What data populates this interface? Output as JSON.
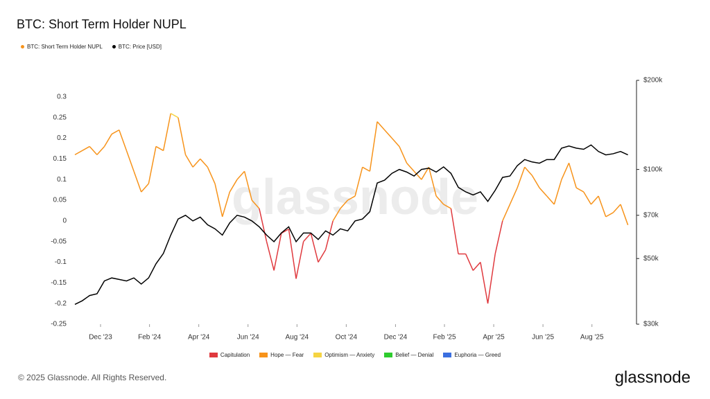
{
  "chart_data": {
    "type": "line",
    "title": "BTC: Short Term Holder NUPL",
    "xlim": [
      2023.83,
      2025.72
    ],
    "xticks": [
      {
        "value": 2023.917,
        "label": "Dec '23"
      },
      {
        "value": 2024.083,
        "label": "Feb '24"
      },
      {
        "value": 2024.25,
        "label": "Apr '24"
      },
      {
        "value": 2024.417,
        "label": "Jun '24"
      },
      {
        "value": 2024.583,
        "label": "Aug '24"
      },
      {
        "value": 2024.75,
        "label": "Oct '24"
      },
      {
        "value": 2024.917,
        "label": "Dec '24"
      },
      {
        "value": 2025.083,
        "label": "Feb '25"
      },
      {
        "value": 2025.25,
        "label": "Apr '25"
      },
      {
        "value": 2025.417,
        "label": "Jun '25"
      },
      {
        "value": 2025.583,
        "label": "Aug '25"
      }
    ],
    "ylim": [
      -0.25,
      0.34
    ],
    "yticks": [
      0.3,
      0.25,
      0.2,
      0.15,
      0.1,
      0.05,
      0,
      -0.05,
      -0.1,
      -0.15,
      -0.2,
      -0.25
    ],
    "y2lim": [
      30000,
      200000
    ],
    "y2scale": "log",
    "y2ticks": [
      {
        "value": 200000,
        "label": "$200k"
      },
      {
        "value": 100000,
        "label": "$100k"
      },
      {
        "value": 70000,
        "label": "$70k"
      },
      {
        "value": 50000,
        "label": "$50k"
      },
      {
        "value": 30000,
        "label": "$30k"
      }
    ],
    "x": [
      2023.83,
      2023.855,
      2023.88,
      2023.905,
      2023.93,
      2023.955,
      2023.98,
      2024.005,
      2024.03,
      2024.055,
      2024.08,
      2024.105,
      2024.13,
      2024.155,
      2024.18,
      2024.205,
      2024.23,
      2024.255,
      2024.28,
      2024.305,
      2024.33,
      2024.355,
      2024.38,
      2024.405,
      2024.43,
      2024.455,
      2024.48,
      2024.505,
      2024.53,
      2024.555,
      2024.58,
      2024.605,
      2024.63,
      2024.655,
      2024.68,
      2024.705,
      2024.73,
      2024.755,
      2024.78,
      2024.805,
      2024.83,
      2024.855,
      2024.88,
      2024.905,
      2024.93,
      2024.955,
      2024.98,
      2025.005,
      2025.03,
      2025.055,
      2025.08,
      2025.105,
      2025.13,
      2025.155,
      2025.18,
      2025.205,
      2025.23,
      2025.255,
      2025.28,
      2025.305,
      2025.33,
      2025.355,
      2025.38,
      2025.405,
      2025.43,
      2025.455,
      2025.48,
      2025.505,
      2025.53,
      2025.555,
      2025.58,
      2025.605,
      2025.63,
      2025.655,
      2025.68,
      2025.705
    ],
    "series": [
      {
        "name": "BTC: Short Term Holder NUPL",
        "color": "#f7931a",
        "values": [
          0.16,
          0.17,
          0.18,
          0.16,
          0.18,
          0.21,
          0.22,
          0.17,
          0.12,
          0.07,
          0.09,
          0.18,
          0.17,
          0.26,
          0.25,
          0.16,
          0.13,
          0.15,
          0.13,
          0.09,
          0.01,
          0.07,
          0.1,
          0.12,
          0.05,
          0.03,
          -0.05,
          -0.12,
          -0.03,
          -0.02,
          -0.14,
          -0.05,
          -0.03,
          -0.1,
          -0.07,
          0,
          0.03,
          0.05,
          0.06,
          0.13,
          0.12,
          0.24,
          0.22,
          0.2,
          0.18,
          0.14,
          0.12,
          0.1,
          0.13,
          0.06,
          0.04,
          0.03,
          -0.08,
          -0.08,
          -0.12,
          -0.1,
          -0.2,
          -0.08,
          0,
          0.04,
          0.08,
          0.13,
          0.11,
          0.08,
          0.06,
          0.04,
          0.1,
          0.14,
          0.08,
          0.07,
          0.04,
          0.06,
          0.01,
          0.02,
          0.04,
          -0.01
        ]
      },
      {
        "name": "BTC: Price [USD]",
        "color": "#000000",
        "axis": "y2",
        "values": [
          35000,
          36000,
          37500,
          38000,
          42000,
          43000,
          42500,
          42000,
          43000,
          41000,
          43000,
          48000,
          52000,
          60000,
          68000,
          70000,
          67000,
          69000,
          65000,
          63000,
          60000,
          66000,
          70000,
          69000,
          67000,
          64000,
          60000,
          57000,
          61000,
          64000,
          57000,
          61000,
          61000,
          58000,
          62000,
          60000,
          63000,
          62000,
          67000,
          68000,
          72000,
          90000,
          92000,
          97000,
          100000,
          98000,
          95000,
          100000,
          101000,
          98000,
          102000,
          97000,
          87000,
          84000,
          82000,
          84000,
          78000,
          85000,
          94000,
          95000,
          103000,
          108000,
          106000,
          105000,
          108000,
          108000,
          118000,
          120000,
          118000,
          117000,
          121000,
          115000,
          112000,
          113000,
          115000,
          112000
        ]
      }
    ],
    "zones": [
      {
        "name": "Capitulation",
        "color": "#e0393e",
        "max": 0
      },
      {
        "name": "Hope — Fear",
        "color": "#f7931a",
        "min": 0,
        "max": 0.25
      },
      {
        "name": "Optimism — Anxiety",
        "color": "#f5d442",
        "min": 0.25,
        "max": 0.5
      },
      {
        "name": "Belief — Denial",
        "color": "#2ecc2e",
        "min": 0.5,
        "max": 0.75
      },
      {
        "name": "Euphoria — Greed",
        "color": "#3b6fe0",
        "min": 0.75
      }
    ],
    "watermark": "glassnode"
  },
  "footer": {
    "copyright": "© 2025 Glassnode. All Rights Reserved.",
    "logo": "glassnode"
  }
}
